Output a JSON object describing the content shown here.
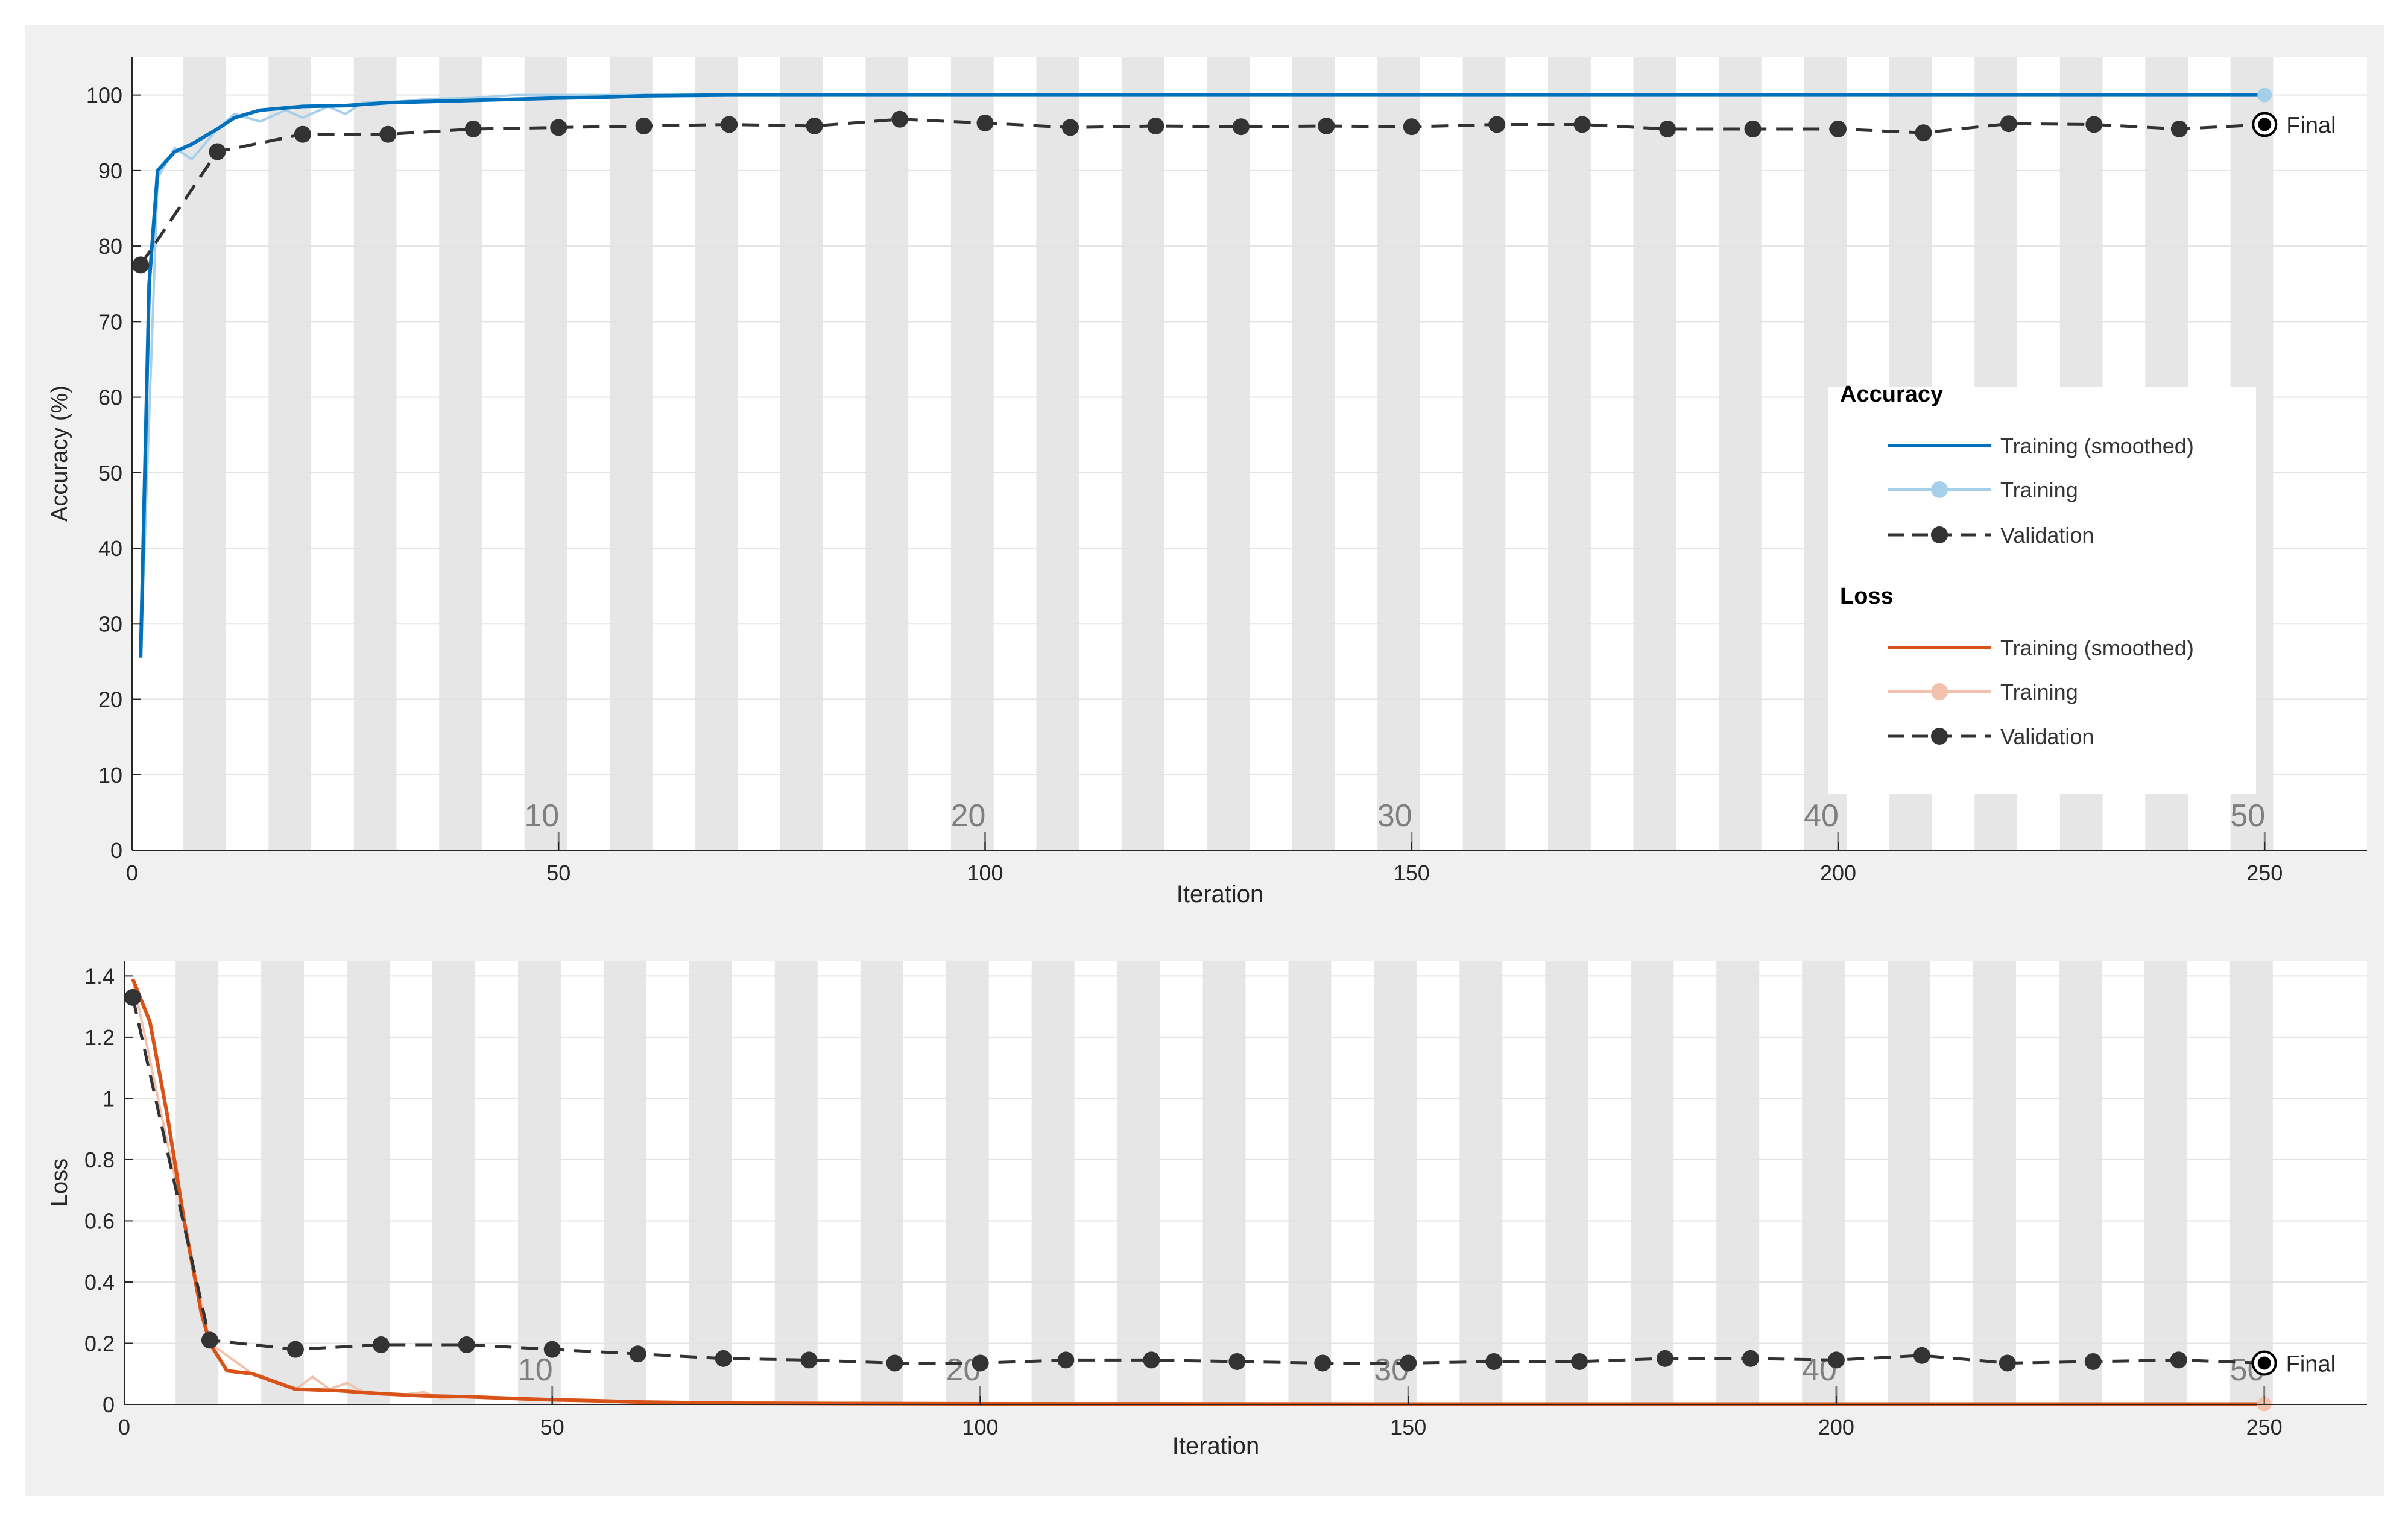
{
  "colors": {
    "train_acc_smoothed": "#0072bd",
    "train_acc": "#a6cfe9",
    "train_loss_smoothed": "#d95319",
    "train_loss": "#f2c2ad",
    "validation": "#333333",
    "epoch_band": "#e6e6e6",
    "grid": "#e3e3e3",
    "axis": "#262626"
  },
  "legend": {
    "accuracy_title": "Accuracy",
    "loss_title": "Loss",
    "items": {
      "acc_smoothed": "Training (smoothed)",
      "acc_training": "Training",
      "acc_validation": "Validation",
      "loss_smoothed": "Training (smoothed)",
      "loss_training": "Training",
      "loss_validation": "Validation"
    }
  },
  "chart_data": [
    {
      "type": "line",
      "ylabel": "Accuracy (%)",
      "xlabel": "Iteration",
      "xlim": [
        0,
        262
      ],
      "ylim": [
        0,
        105
      ],
      "xticks": [
        0,
        50,
        100,
        150,
        200,
        250
      ],
      "yticks": [
        0,
        10,
        20,
        30,
        40,
        50,
        60,
        70,
        80,
        90,
        100
      ],
      "epoch_labels": [
        "10",
        "20",
        "30",
        "40",
        "50"
      ],
      "epoch_label_iterations": [
        50,
        100,
        150,
        200,
        250
      ],
      "final_label": "Final",
      "series": [
        {
          "name": "Training (smoothed)",
          "style": "smoothed",
          "x": [
            1,
            2,
            3,
            5,
            7,
            10,
            12,
            15,
            20,
            25,
            30,
            40,
            50,
            55,
            60,
            70,
            80,
            100,
            150,
            200,
            250
          ],
          "y": [
            25.5,
            75,
            90,
            92.5,
            93.5,
            95.5,
            97,
            98,
            98.5,
            98.6,
            99,
            99.3,
            99.6,
            99.7,
            99.9,
            100,
            100,
            100,
            100,
            100,
            100
          ]
        },
        {
          "name": "Training",
          "style": "raw",
          "x": [
            1,
            3,
            5,
            7,
            10,
            12,
            15,
            18,
            20,
            23,
            25,
            27,
            30,
            35,
            40,
            45,
            50,
            60,
            80,
            100,
            150,
            200,
            250
          ],
          "y": [
            25.5,
            89,
            93,
            91.5,
            95.5,
            97.5,
            96.5,
            98,
            97,
            98.5,
            97.5,
            99,
            99,
            99.5,
            99.6,
            100,
            100,
            100,
            100,
            100,
            100,
            100,
            100
          ]
        },
        {
          "name": "Validation",
          "style": "validation",
          "x": [
            1,
            10,
            20,
            30,
            40,
            50,
            60,
            70,
            80,
            90,
            100,
            110,
            120,
            130,
            140,
            150,
            160,
            170,
            180,
            190,
            200,
            210,
            220,
            230,
            240,
            250
          ],
          "y": [
            77.5,
            92.5,
            94.8,
            94.8,
            95.5,
            95.7,
            95.9,
            96.1,
            95.9,
            96.8,
            96.3,
            95.7,
            95.9,
            95.8,
            95.9,
            95.8,
            96.1,
            96.1,
            95.5,
            95.5,
            95.5,
            95,
            96.2,
            96.1,
            95.5,
            96.1
          ]
        }
      ]
    },
    {
      "type": "line",
      "ylabel": "Loss",
      "xlabel": "Iteration",
      "xlim": [
        0,
        262
      ],
      "ylim": [
        0,
        1.45
      ],
      "xticks": [
        0,
        50,
        100,
        150,
        200,
        250
      ],
      "yticks": [
        0,
        0.2,
        0.4,
        0.6,
        0.8,
        1,
        1.2,
        1.4
      ],
      "epoch_labels": [
        "10",
        "20",
        "30",
        "40",
        "50"
      ],
      "epoch_label_iterations": [
        50,
        100,
        150,
        200,
        250
      ],
      "final_label": "Final",
      "series": [
        {
          "name": "Training (smoothed)",
          "style": "smoothed",
          "x": [
            1,
            3,
            5,
            7,
            9,
            10,
            12,
            15,
            17,
            20,
            25,
            30,
            35,
            40,
            45,
            50,
            55,
            60,
            70,
            100,
            150,
            200,
            250
          ],
          "y": [
            1.39,
            1.25,
            0.95,
            0.6,
            0.3,
            0.2,
            0.11,
            0.1,
            0.08,
            0.05,
            0.045,
            0.035,
            0.028,
            0.025,
            0.02,
            0.015,
            0.012,
            0.008,
            0.004,
            0.002,
            0.001,
            0.001,
            0.001
          ]
        },
        {
          "name": "Training",
          "style": "raw",
          "x": [
            1,
            10,
            15,
            20,
            22,
            24,
            26,
            28,
            30,
            32,
            35,
            37,
            40,
            45,
            50,
            55,
            60,
            80,
            100,
            150,
            200,
            250
          ],
          "y": [
            1.39,
            0.2,
            0.1,
            0.05,
            0.09,
            0.05,
            0.07,
            0.04,
            0.035,
            0.03,
            0.04,
            0.02,
            0.025,
            0.02,
            0.015,
            0.01,
            0.005,
            0.003,
            0.002,
            0.001,
            0.001,
            0.001
          ]
        },
        {
          "name": "Validation",
          "style": "validation",
          "x": [
            1,
            10,
            20,
            30,
            40,
            50,
            60,
            70,
            80,
            90,
            100,
            110,
            120,
            130,
            140,
            150,
            160,
            170,
            180,
            190,
            200,
            210,
            220,
            230,
            240,
            250
          ],
          "y": [
            1.33,
            0.21,
            0.18,
            0.195,
            0.195,
            0.18,
            0.165,
            0.15,
            0.145,
            0.135,
            0.135,
            0.145,
            0.145,
            0.14,
            0.135,
            0.135,
            0.14,
            0.14,
            0.15,
            0.15,
            0.145,
            0.16,
            0.135,
            0.14,
            0.145,
            0.135
          ]
        }
      ]
    }
  ]
}
